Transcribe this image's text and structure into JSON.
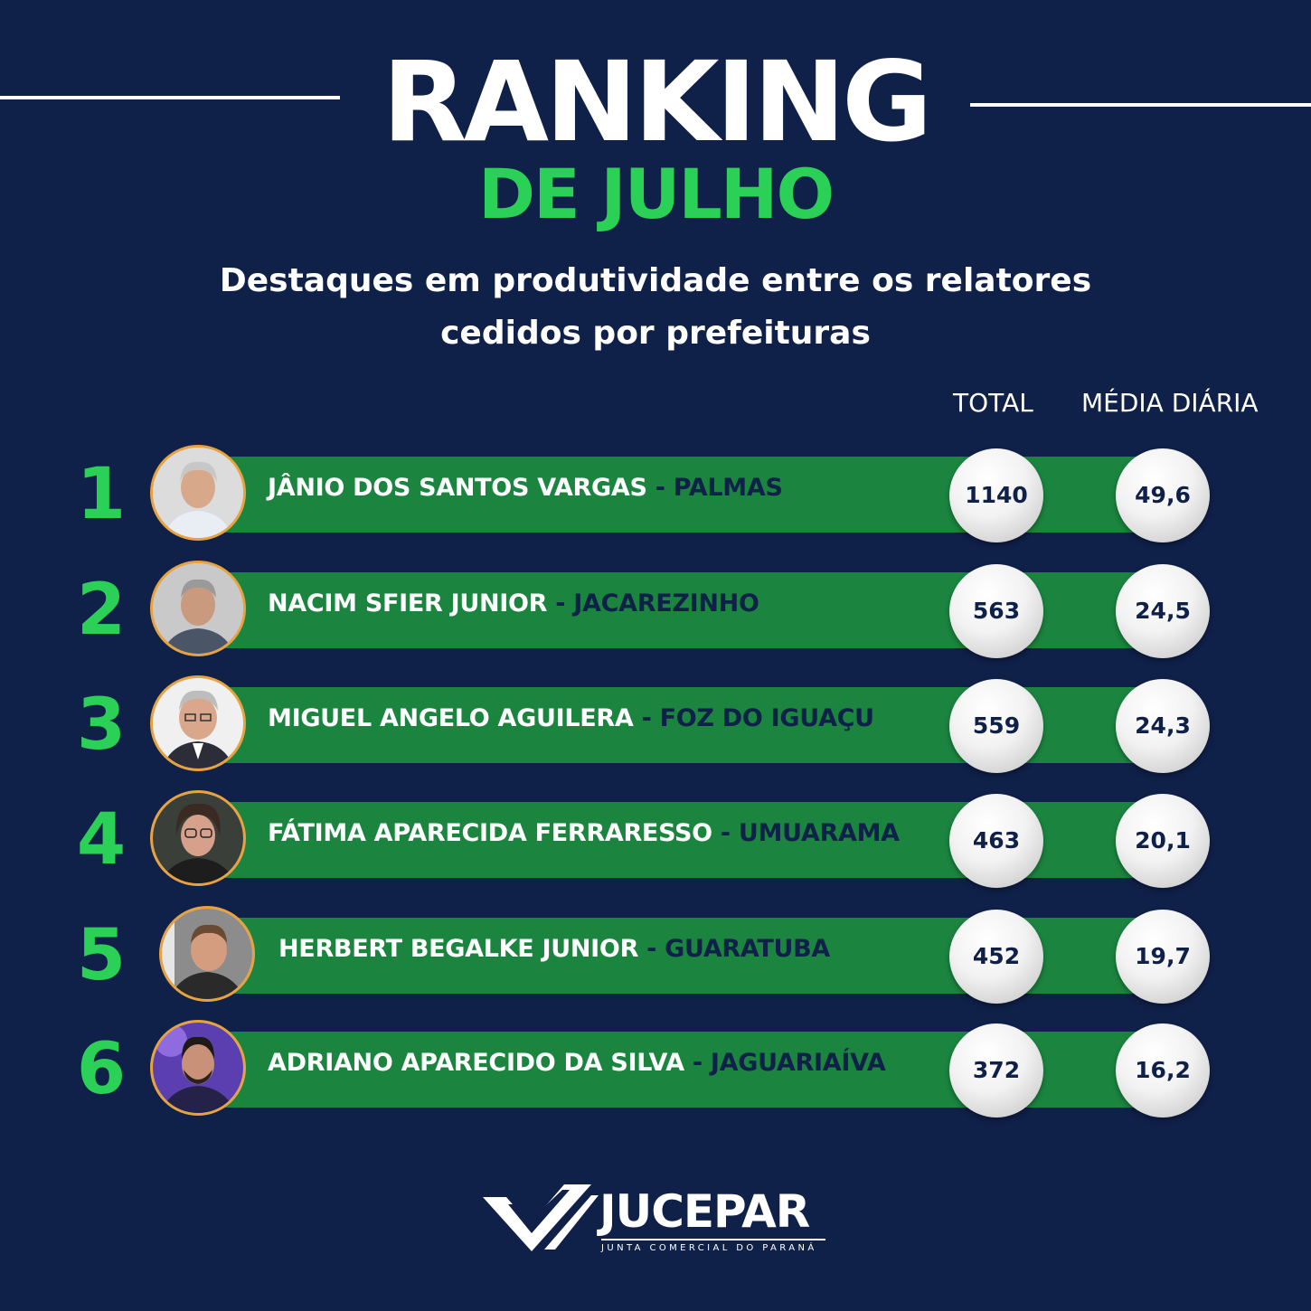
{
  "header": {
    "title": "RANKING",
    "subtitle": "DE JULHO",
    "description_line1": "Destaques em produtividade entre os relatores",
    "description_line2": "cedidos por prefeituras"
  },
  "columns": {
    "total": "TOTAL",
    "media": "MÉDIA DIÁRIA"
  },
  "ranking": [
    {
      "rank": "1",
      "name": "JÂNIO DOS SANTOS VARGAS",
      "sep": " - ",
      "city": "PALMAS",
      "total": "1140",
      "media": "49,6"
    },
    {
      "rank": "2",
      "name": "NACIM SFIER JUNIOR",
      "sep": " - ",
      "city": "JACAREZINHO",
      "total": "563",
      "media": "24,5"
    },
    {
      "rank": "3",
      "name": "MIGUEL ANGELO AGUILERA",
      "sep": " - ",
      "city": "FOZ DO IGUAÇU",
      "total": "559",
      "media": "24,3"
    },
    {
      "rank": "4",
      "name": "FÁTIMA APARECIDA FERRARESSO",
      "sep": " - ",
      "city": "UMUARAMA",
      "total": "463",
      "media": "20,1"
    },
    {
      "rank": "5",
      "name": "HERBERT BEGALKE JUNIOR",
      "sep": " - ",
      "city": "GUARATUBA",
      "total": "452",
      "media": "19,7"
    },
    {
      "rank": "6",
      "name": "ADRIANO APARECIDO DA SILVA",
      "sep": " - ",
      "city": "JAGUARIAÍVA",
      "total": "372",
      "media": "16,2"
    }
  ],
  "logo": {
    "name": "JUCEPAR",
    "tagline": "JUNTA COMERCIAL DO PARANÁ"
  },
  "colors": {
    "background": "#0f2049",
    "accent_green": "#2bd157",
    "bar_green": "#1b8540",
    "avatar_border": "#e8a23f"
  }
}
